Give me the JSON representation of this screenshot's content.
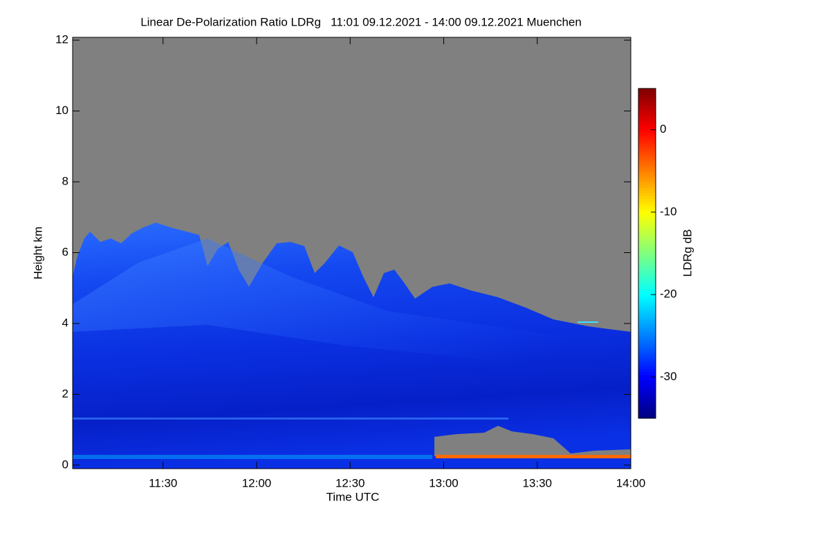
{
  "chart_data": {
    "type": "heatmap",
    "title": "Linear De-Polarization Ratio LDRg   11:01 09.12.2021 - 14:00 09.12.2021 Muenchen",
    "x_label": "Time UTC",
    "y_label": "Height km",
    "xlim": [
      661,
      840
    ],
    "xticks": [
      {
        "value": 690,
        "label": "11:30"
      },
      {
        "value": 720,
        "label": "12:00"
      },
      {
        "value": 750,
        "label": "12:30"
      },
      {
        "value": 780,
        "label": "13:00"
      },
      {
        "value": 810,
        "label": "13:30"
      },
      {
        "value": 840,
        "label": "14:00"
      }
    ],
    "ylim": [
      -0.1,
      12.08
    ],
    "yticks": [
      0,
      2,
      4,
      6,
      8,
      10,
      12
    ],
    "colorbar_label": "LDRg dB",
    "clim": [
      -35,
      5
    ],
    "cticks": [
      -30,
      -20,
      -10,
      0
    ],
    "colormap": "jet"
  }
}
